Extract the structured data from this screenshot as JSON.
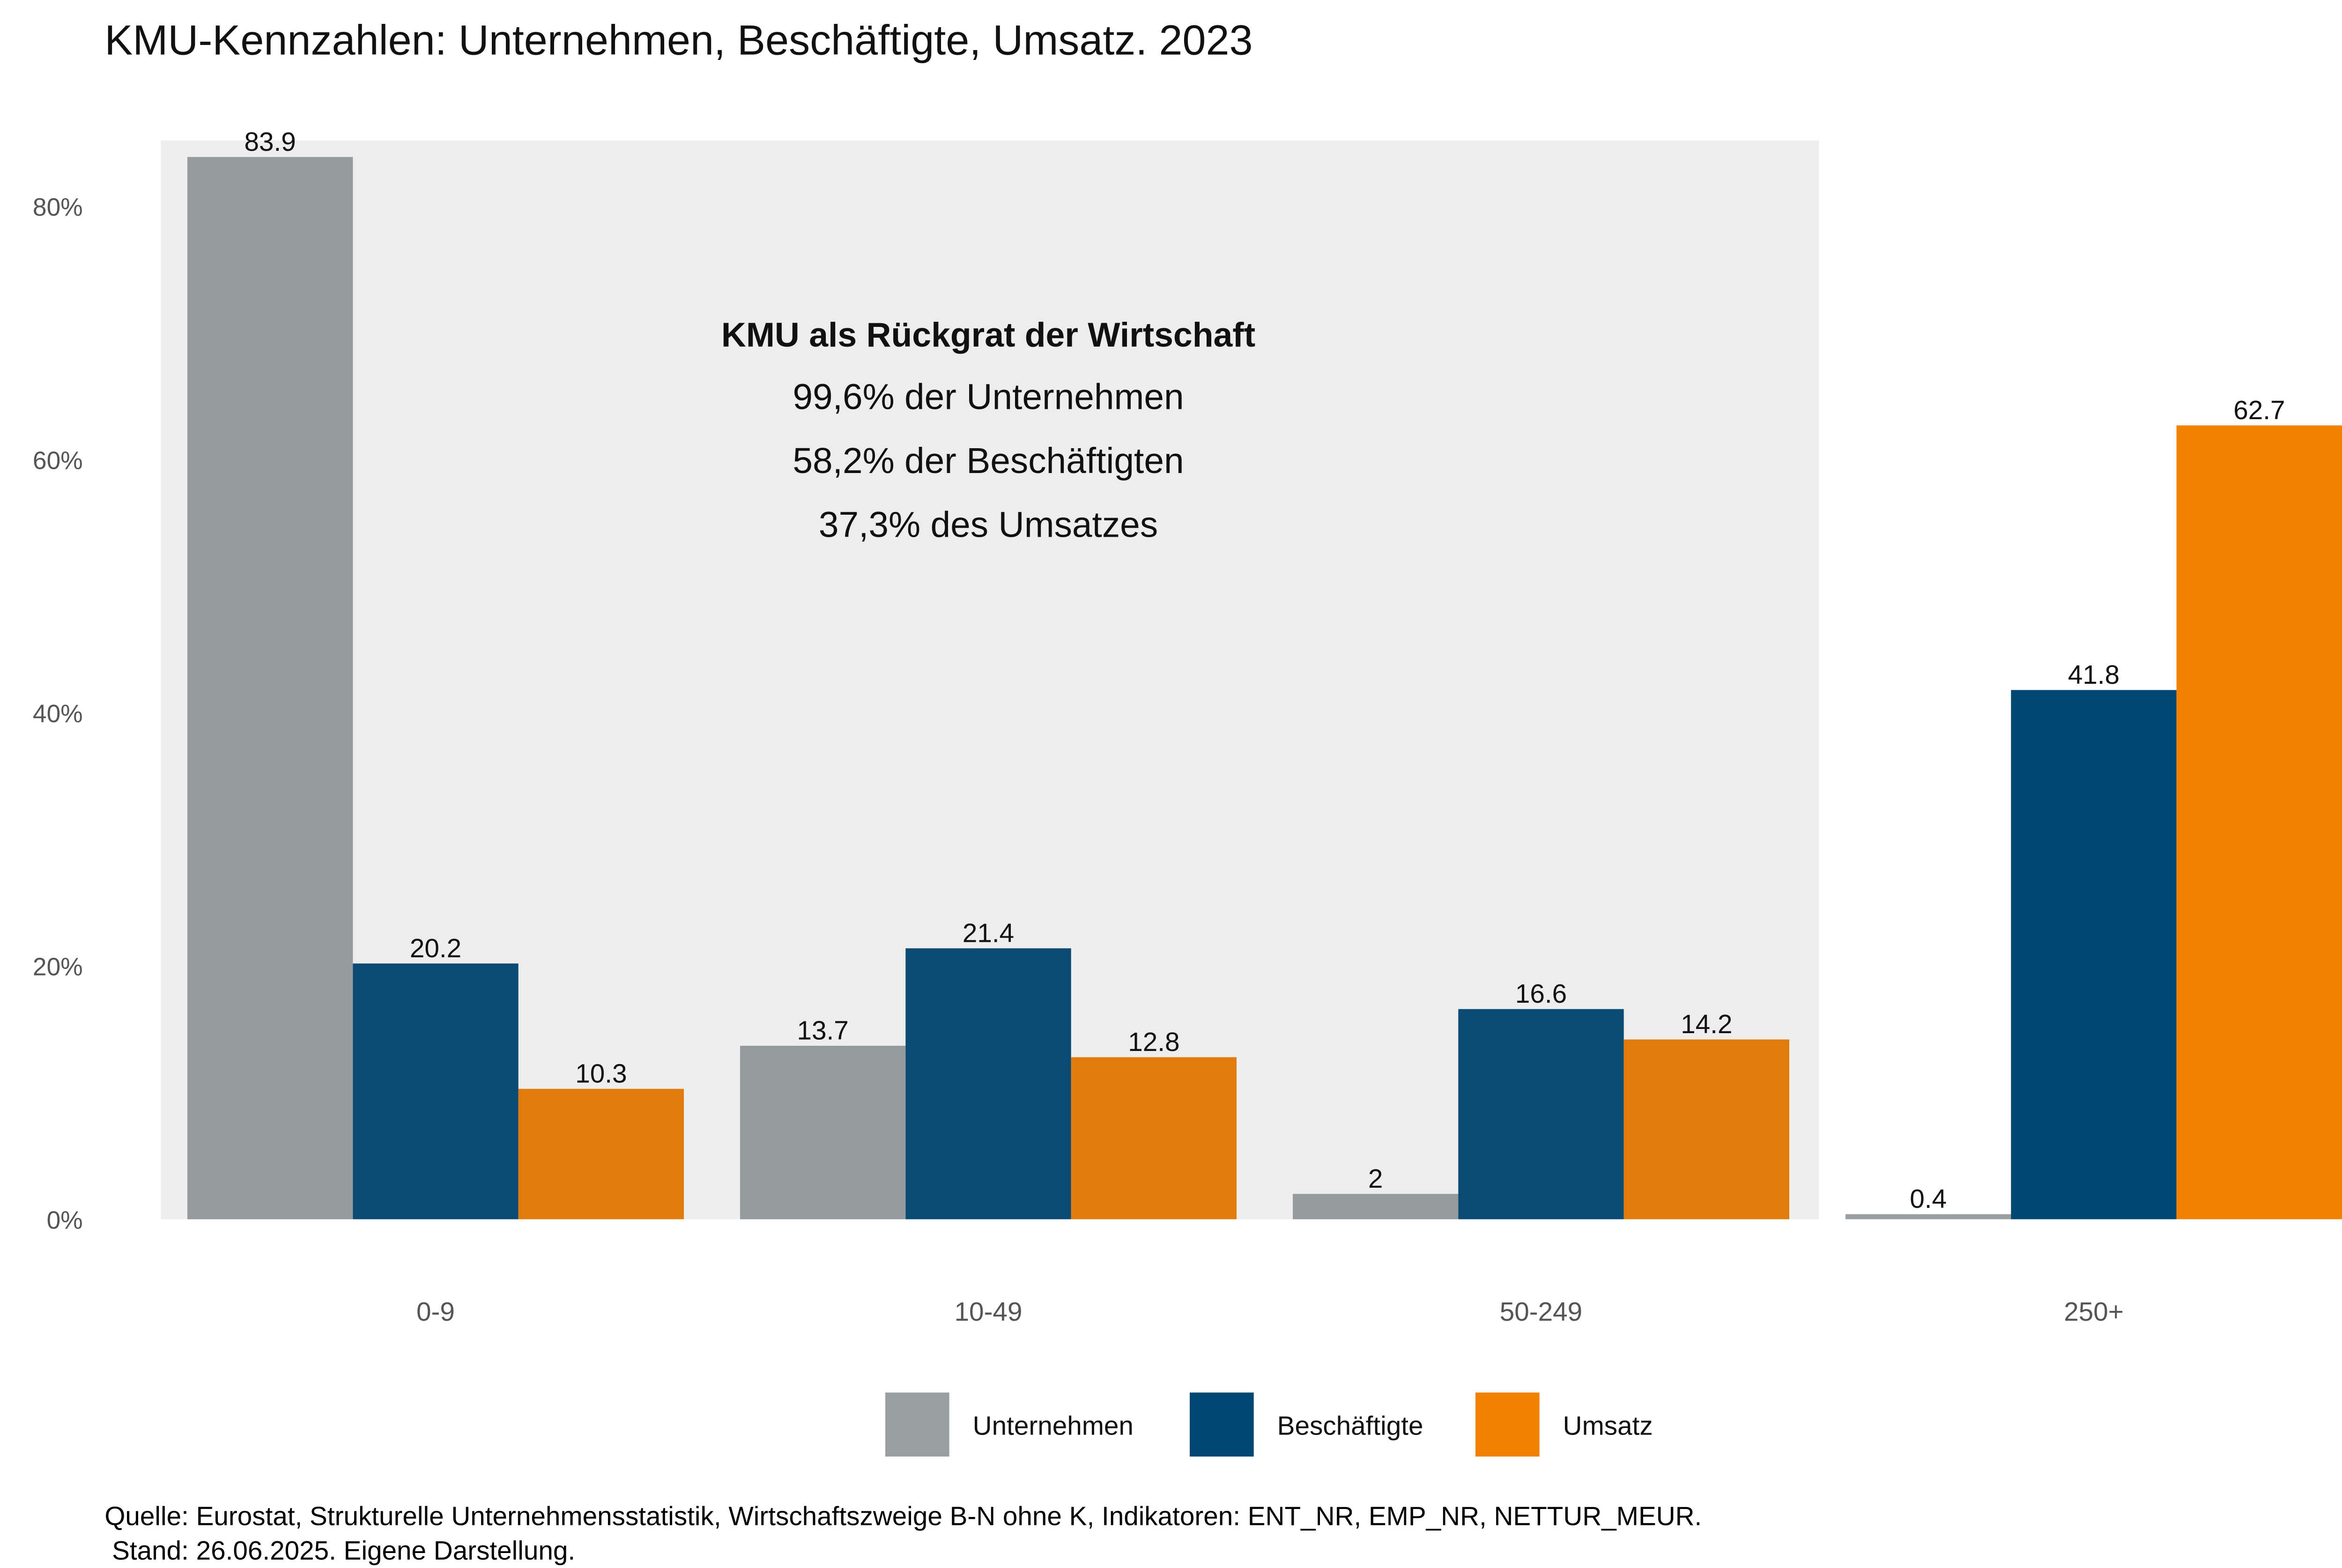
{
  "chart_data": {
    "type": "bar",
    "title": "KMU-Kennzahlen: Unternehmen, Beschäftigte, Umsatz. 2023",
    "xlabel": "",
    "ylabel": "",
    "ylim": [
      0,
      85
    ],
    "yticks": [
      0,
      20,
      40,
      60,
      80
    ],
    "ytick_labels": [
      "0%",
      "20%",
      "40%",
      "60%",
      "80%"
    ],
    "categories": [
      "0-9",
      "10-49",
      "50-249",
      "250+"
    ],
    "series": [
      {
        "name": "Unternehmen",
        "values": [
          83.9,
          13.7,
          2,
          0.4
        ],
        "data_labels": [
          "83.9",
          "13.7",
          "2",
          "0.4"
        ],
        "color": "#9a9fa2",
        "color_in_highlight": "#959a9d"
      },
      {
        "name": "Beschäftigte",
        "values": [
          20.2,
          21.4,
          16.6,
          41.8
        ],
        "data_labels": [
          "20.2",
          "21.4",
          "16.6",
          "41.8"
        ],
        "color": "#004672",
        "color_in_highlight": "#0b4a72"
      },
      {
        "name": "Umsatz",
        "values": [
          10.3,
          12.8,
          14.2,
          62.7
        ],
        "data_labels": [
          "10.3",
          "12.8",
          "14.2",
          "62.7"
        ],
        "color": "#f08000",
        "color_in_highlight": "#e07b0c"
      }
    ],
    "highlight": {
      "categories": [
        "0-9",
        "10-49",
        "50-249"
      ],
      "color": "#ededed",
      "heading": "KMU als Rückgrat der Wirtschaft",
      "lines": [
        "99,6% der Unternehmen",
        "58,2% der Beschäftigten",
        "37,3% des Umsatzes"
      ]
    },
    "grid": false,
    "legend_position": "bottom",
    "caption": [
      "Quelle: Eurostat, Strukturelle Unternehmensstatistik, Wirtschaftszweige B-N ohne K, Indikatoren: ENT_NR, EMP_NR, NETTUR_MEUR.",
      " Stand: 26.06.2025. Eigene Darstellung."
    ]
  }
}
